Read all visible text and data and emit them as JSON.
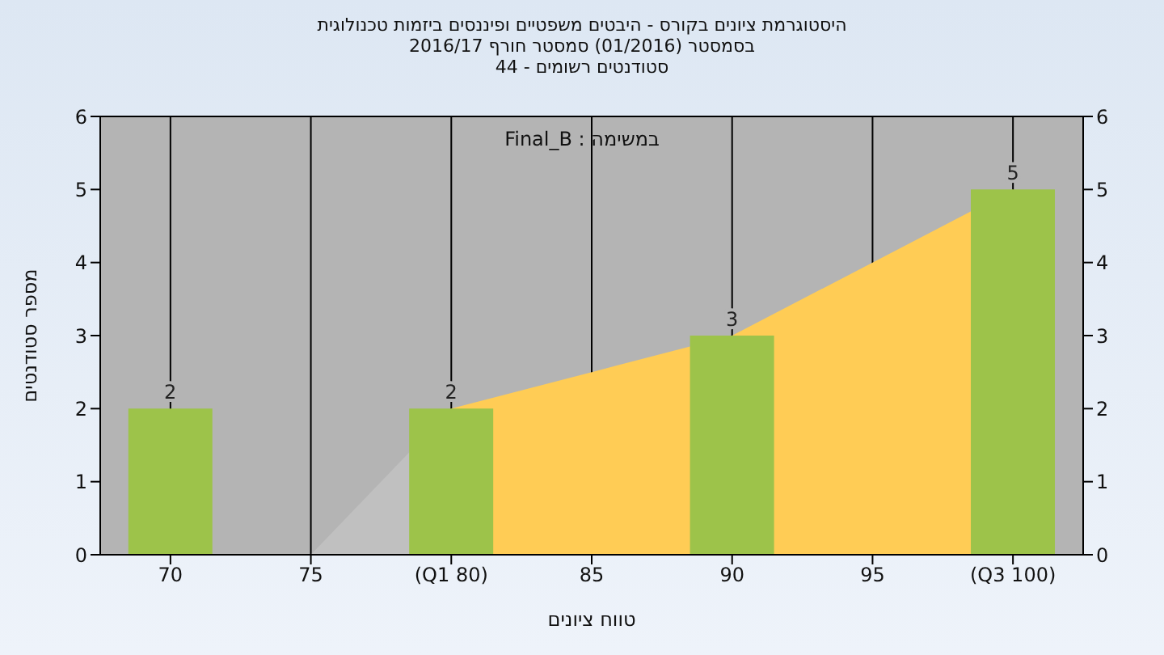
{
  "chart_data": {
    "type": "bar",
    "title": "היסטוגרמת ציונים בקורס - היבטים משפטיים ופיננסים ביזמות טכנולוגית",
    "subtitle": "בסמסטר  (01/2016)  סמסטר חורף 2016/17\nסטודנטים רשומים - 44",
    "xlabel": "טווח ציונים",
    "ylabel": "מספר סטודנטים",
    "annotations": [
      "Final_B : במשימה"
    ],
    "categories": [
      "70",
      "75",
      "(Q1 80)",
      "85",
      "90",
      "95",
      "(Q3 100)"
    ],
    "series": [
      {
        "type": "area",
        "color": "#c0c0c0",
        "values": [
          null,
          0,
          2,
          null,
          null,
          null,
          null
        ]
      },
      {
        "type": "area",
        "color": "#ffcc55",
        "values": [
          null,
          null,
          2,
          2.5,
          3,
          4,
          5
        ]
      },
      {
        "color": "#9dc34a",
        "values": [
          2,
          0,
          2,
          0,
          3,
          0,
          5
        ],
        "value_labels": [
          "2",
          null,
          "2",
          null,
          "3",
          null,
          "5"
        ]
      }
    ],
    "ylim": [
      0,
      6
    ],
    "yticks": [
      0,
      1,
      2,
      3,
      4,
      5,
      6
    ],
    "y2lim": [
      0,
      6
    ],
    "y2ticks": [
      0,
      1,
      2,
      3,
      4,
      5,
      6
    ],
    "grid": true,
    "legend": false
  }
}
